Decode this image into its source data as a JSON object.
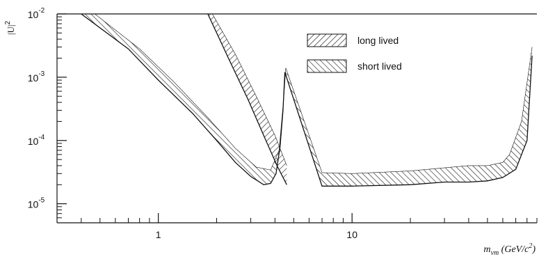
{
  "chart_data": {
    "type": "line",
    "title": "",
    "xlabel_main": "m",
    "xlabel_sub": "νm",
    "xlabel_units": "(GeV/c",
    "xlabel_units_sup": "2",
    "xlabel_units_close": ")",
    "ylabel": "|U|",
    "ylabel_sup": "2",
    "x_scale": "log",
    "y_scale": "log",
    "xlim": [
      0.3,
      90
    ],
    "ylim": [
      5e-06,
      0.01
    ],
    "grid": false,
    "legend_position": "top-right",
    "x_ticks": [
      {
        "value": 1,
        "label": "1"
      },
      {
        "value": 10,
        "label": "10"
      }
    ],
    "y_ticks": [
      {
        "value": 0.01,
        "base": "10",
        "exp": "-2"
      },
      {
        "value": 0.001,
        "base": "10",
        "exp": "-3"
      },
      {
        "value": 0.0001,
        "base": "10",
        "exp": "-4"
      },
      {
        "value": 1e-05,
        "base": "10",
        "exp": "-5"
      }
    ],
    "series": [
      {
        "name": "long lived",
        "hatch": "forward",
        "lower": {
          "x": [
            1.8,
            2.3,
            2.9,
            3.5,
            4.1,
            4.6
          ],
          "y": [
            0.01,
            0.002,
            0.00045,
            0.00012,
            4e-05,
            2e-05
          ]
        },
        "upper": {
          "x": [
            1.9,
            2.5,
            3.2,
            4.0,
            4.6
          ],
          "y": [
            0.01,
            0.0023,
            0.0005,
            0.00012,
            4e-05
          ]
        }
      },
      {
        "name": "short lived",
        "hatch": "backward",
        "lower": {
          "x": [
            0.4,
            0.7,
            1.0,
            1.5,
            2.0,
            2.5,
            3.0,
            3.5,
            3.8,
            4.05,
            4.25,
            4.4,
            4.5
          ],
          "y": [
            0.01,
            0.0028,
            0.0009,
            0.00027,
            0.0001,
            4.5e-05,
            2.7e-05,
            2e-05,
            2.1e-05,
            3e-05,
            8e-05,
            0.0003,
            0.0012
          ],
          "trail_x": [
            4.5,
            7.0,
            10,
            20,
            30,
            40,
            50,
            60,
            70,
            80,
            85
          ],
          "trail_y": [
            0.0012,
            1.9e-05,
            1.9e-05,
            2e-05,
            2.2e-05,
            2.2e-05,
            2.3e-05,
            2.6e-05,
            3.5e-05,
            0.0001,
            0.0022
          ]
        },
        "upper": {
          "x": [
            0.47,
            0.8,
            1.2,
            1.8,
            2.5,
            3.2,
            3.8,
            4.2,
            4.45,
            4.55
          ],
          "y": [
            0.01,
            0.0028,
            0.00085,
            0.00023,
            7.5e-05,
            3.8e-05,
            3.4e-05,
            7e-05,
            0.0005,
            0.0014
          ],
          "trail_x": [
            4.55,
            7.0,
            10,
            20,
            30,
            40,
            50,
            60,
            65,
            75,
            85
          ],
          "trail_y": [
            0.0014,
            3.1e-05,
            3e-05,
            3.3e-05,
            3.7e-05,
            4e-05,
            4e-05,
            4.5e-05,
            6e-05,
            0.0002,
            0.003
          ]
        }
      }
    ]
  }
}
